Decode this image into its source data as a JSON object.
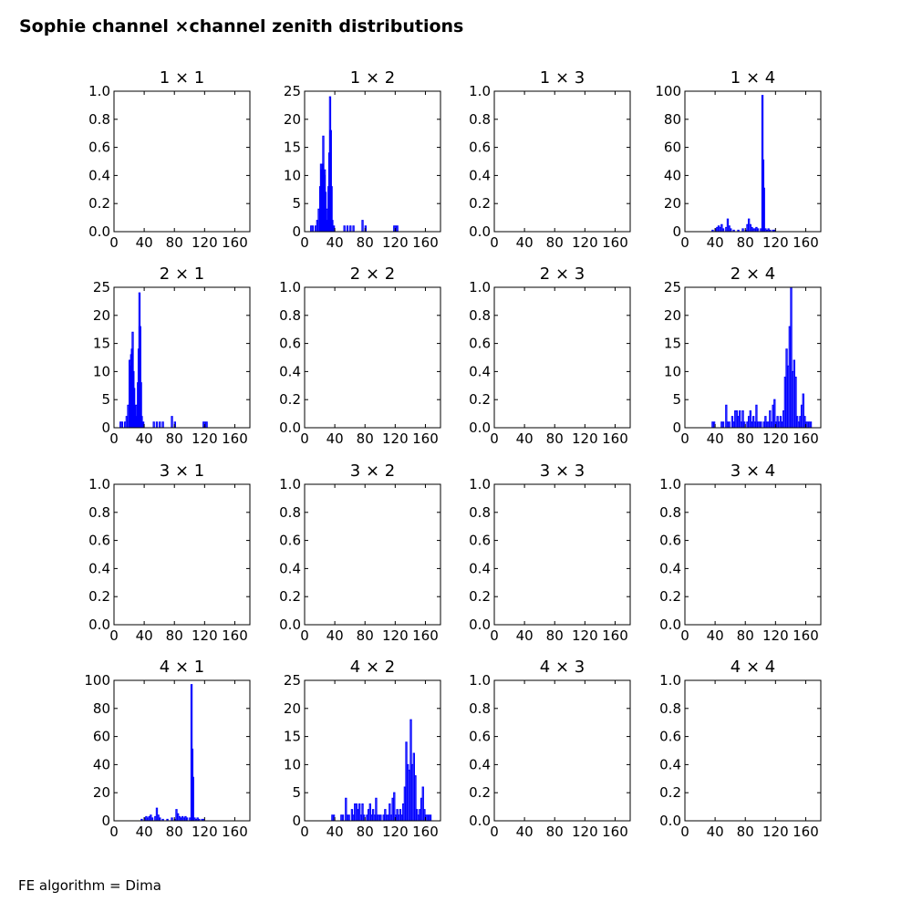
{
  "figure": {
    "title": "Sophie channel ×channel zenith distributions",
    "footer": "FE algorithm = Dima"
  },
  "chart_data": [
    {
      "type": "line",
      "title": "1  × 1",
      "xlim": [
        0,
        180
      ],
      "ylim": [
        0,
        1.0
      ],
      "xticks": [
        "0",
        "40",
        "80",
        "120",
        "160"
      ],
      "yticks": [
        "0.0",
        "0.2",
        "0.4",
        "0.6",
        "0.8",
        "1.0"
      ],
      "grid": false,
      "bins": []
    },
    {
      "type": "line",
      "title": "1  × 2",
      "xlim": [
        0,
        180
      ],
      "ylim": [
        0,
        25
      ],
      "xticks": [
        "0",
        "40",
        "80",
        "120",
        "160"
      ],
      "yticks": [
        "0",
        "5",
        "10",
        "15",
        "20",
        "25"
      ],
      "grid": false,
      "bins": [
        [
          8,
          1
        ],
        [
          10,
          1
        ],
        [
          14,
          1
        ],
        [
          16,
          2
        ],
        [
          18,
          4
        ],
        [
          20,
          8
        ],
        [
          21,
          12
        ],
        [
          22,
          11
        ],
        [
          23,
          12
        ],
        [
          24,
          17
        ],
        [
          25,
          10
        ],
        [
          26,
          11
        ],
        [
          27,
          7
        ],
        [
          28,
          1
        ],
        [
          29,
          4
        ],
        [
          30,
          2
        ],
        [
          31,
          8
        ],
        [
          32,
          14
        ],
        [
          33,
          24
        ],
        [
          34,
          18
        ],
        [
          35,
          8
        ],
        [
          36,
          2
        ],
        [
          37,
          1
        ],
        [
          38,
          1
        ],
        [
          52,
          1
        ],
        [
          56,
          1
        ],
        [
          60,
          1
        ],
        [
          64,
          1
        ],
        [
          76,
          2
        ],
        [
          80,
          1
        ],
        [
          118,
          1
        ],
        [
          120,
          1
        ],
        [
          122,
          1
        ]
      ]
    },
    {
      "type": "line",
      "title": "1  × 3",
      "xlim": [
        0,
        180
      ],
      "ylim": [
        0,
        1.0
      ],
      "xticks": [
        "0",
        "40",
        "80",
        "120",
        "160"
      ],
      "yticks": [
        "0.0",
        "0.2",
        "0.4",
        "0.6",
        "0.8",
        "1.0"
      ],
      "grid": false,
      "bins": []
    },
    {
      "type": "line",
      "title": "1  × 4",
      "xlim": [
        0,
        180
      ],
      "ylim": [
        0,
        100
      ],
      "xticks": [
        "0",
        "40",
        "80",
        "120",
        "160"
      ],
      "yticks": [
        "0",
        "20",
        "40",
        "60",
        "80",
        "100"
      ],
      "grid": false,
      "bins": [
        [
          36,
          1
        ],
        [
          40,
          2
        ],
        [
          42,
          3
        ],
        [
          44,
          4
        ],
        [
          46,
          3
        ],
        [
          48,
          5
        ],
        [
          50,
          2
        ],
        [
          54,
          3
        ],
        [
          56,
          9
        ],
        [
          58,
          4
        ],
        [
          60,
          2
        ],
        [
          64,
          1
        ],
        [
          70,
          1
        ],
        [
          76,
          2
        ],
        [
          80,
          1
        ],
        [
          82,
          5
        ],
        [
          84,
          9
        ],
        [
          86,
          5
        ],
        [
          88,
          3
        ],
        [
          90,
          2
        ],
        [
          92,
          2
        ],
        [
          94,
          3
        ],
        [
          96,
          2
        ],
        [
          100,
          2
        ],
        [
          102,
          97
        ],
        [
          103,
          51
        ],
        [
          104,
          31
        ],
        [
          106,
          2
        ],
        [
          108,
          1
        ],
        [
          110,
          2
        ],
        [
          112,
          1
        ],
        [
          116,
          1
        ],
        [
          118,
          1
        ]
      ]
    },
    {
      "type": "line",
      "title": "2  × 1",
      "xlim": [
        0,
        180
      ],
      "ylim": [
        0,
        25
      ],
      "xticks": [
        "0",
        "40",
        "80",
        "120",
        "160"
      ],
      "yticks": [
        "0",
        "5",
        "10",
        "15",
        "20",
        "25"
      ],
      "grid": false,
      "bins": [
        [
          8,
          1
        ],
        [
          10,
          1
        ],
        [
          14,
          1
        ],
        [
          16,
          2
        ],
        [
          18,
          4
        ],
        [
          20,
          12
        ],
        [
          21,
          11
        ],
        [
          22,
          13
        ],
        [
          23,
          14
        ],
        [
          24,
          17
        ],
        [
          25,
          10
        ],
        [
          26,
          7
        ],
        [
          27,
          4
        ],
        [
          28,
          1
        ],
        [
          29,
          4
        ],
        [
          30,
          2
        ],
        [
          31,
          8
        ],
        [
          32,
          14
        ],
        [
          33,
          24
        ],
        [
          34,
          18
        ],
        [
          35,
          8
        ],
        [
          36,
          2
        ],
        [
          37,
          1
        ],
        [
          38,
          1
        ],
        [
          52,
          1
        ],
        [
          56,
          1
        ],
        [
          60,
          1
        ],
        [
          64,
          1
        ],
        [
          76,
          2
        ],
        [
          80,
          1
        ],
        [
          118,
          1
        ],
        [
          120,
          1
        ],
        [
          122,
          1
        ]
      ]
    },
    {
      "type": "line",
      "title": "2  × 2",
      "xlim": [
        0,
        180
      ],
      "ylim": [
        0,
        1.0
      ],
      "xticks": [
        "0",
        "40",
        "80",
        "120",
        "160"
      ],
      "yticks": [
        "0.0",
        "0.2",
        "0.4",
        "0.6",
        "0.8",
        "1.0"
      ],
      "grid": false,
      "bins": []
    },
    {
      "type": "line",
      "title": "2  × 3",
      "xlim": [
        0,
        180
      ],
      "ylim": [
        0,
        1.0
      ],
      "xticks": [
        "0",
        "40",
        "80",
        "120",
        "160"
      ],
      "yticks": [
        "0.0",
        "0.2",
        "0.4",
        "0.6",
        "0.8",
        "1.0"
      ],
      "grid": false,
      "bins": []
    },
    {
      "type": "line",
      "title": "2  × 4",
      "xlim": [
        0,
        180
      ],
      "ylim": [
        0,
        25
      ],
      "xticks": [
        "0",
        "40",
        "80",
        "120",
        "160"
      ],
      "yticks": [
        "0",
        "5",
        "10",
        "15",
        "20",
        "25"
      ],
      "grid": false,
      "bins": [
        [
          36,
          1
        ],
        [
          38,
          1
        ],
        [
          48,
          1
        ],
        [
          50,
          1
        ],
        [
          54,
          4
        ],
        [
          56,
          1
        ],
        [
          58,
          1
        ],
        [
          62,
          2
        ],
        [
          64,
          1
        ],
        [
          66,
          3
        ],
        [
          68,
          3
        ],
        [
          70,
          2
        ],
        [
          72,
          3
        ],
        [
          74,
          1
        ],
        [
          76,
          3
        ],
        [
          78,
          1
        ],
        [
          82,
          1
        ],
        [
          84,
          2
        ],
        [
          86,
          3
        ],
        [
          88,
          1
        ],
        [
          90,
          2
        ],
        [
          92,
          1
        ],
        [
          94,
          4
        ],
        [
          96,
          1
        ],
        [
          98,
          1
        ],
        [
          100,
          1
        ],
        [
          104,
          1
        ],
        [
          106,
          2
        ],
        [
          108,
          1
        ],
        [
          110,
          1
        ],
        [
          112,
          3
        ],
        [
          114,
          1
        ],
        [
          116,
          4
        ],
        [
          118,
          5
        ],
        [
          120,
          1
        ],
        [
          122,
          2
        ],
        [
          124,
          1
        ],
        [
          126,
          2
        ],
        [
          128,
          1
        ],
        [
          130,
          3
        ],
        [
          132,
          9
        ],
        [
          134,
          14
        ],
        [
          136,
          11
        ],
        [
          138,
          18
        ],
        [
          140,
          25
        ],
        [
          142,
          10
        ],
        [
          144,
          12
        ],
        [
          146,
          9
        ],
        [
          148,
          2
        ],
        [
          150,
          1
        ],
        [
          152,
          2
        ],
        [
          154,
          4
        ],
        [
          156,
          6
        ],
        [
          158,
          2
        ],
        [
          160,
          1
        ],
        [
          162,
          1
        ],
        [
          164,
          1
        ],
        [
          166,
          1
        ]
      ]
    },
    {
      "type": "line",
      "title": "3  × 1",
      "xlim": [
        0,
        180
      ],
      "ylim": [
        0,
        1.0
      ],
      "xticks": [
        "0",
        "40",
        "80",
        "120",
        "160"
      ],
      "yticks": [
        "0.0",
        "0.2",
        "0.4",
        "0.6",
        "0.8",
        "1.0"
      ],
      "grid": false,
      "bins": []
    },
    {
      "type": "line",
      "title": "3  × 2",
      "xlim": [
        0,
        180
      ],
      "ylim": [
        0,
        1.0
      ],
      "xticks": [
        "0",
        "40",
        "80",
        "120",
        "160"
      ],
      "yticks": [
        "0.0",
        "0.2",
        "0.4",
        "0.6",
        "0.8",
        "1.0"
      ],
      "grid": false,
      "bins": []
    },
    {
      "type": "line",
      "title": "3  × 3",
      "xlim": [
        0,
        180
      ],
      "ylim": [
        0,
        1.0
      ],
      "xticks": [
        "0",
        "40",
        "80",
        "120",
        "160"
      ],
      "yticks": [
        "0.0",
        "0.2",
        "0.4",
        "0.6",
        "0.8",
        "1.0"
      ],
      "grid": false,
      "bins": []
    },
    {
      "type": "line",
      "title": "3  × 4",
      "xlim": [
        0,
        180
      ],
      "ylim": [
        0,
        1.0
      ],
      "xticks": [
        "0",
        "40",
        "80",
        "120",
        "160"
      ],
      "yticks": [
        "0.0",
        "0.2",
        "0.4",
        "0.6",
        "0.8",
        "1.0"
      ],
      "grid": false,
      "bins": []
    },
    {
      "type": "line",
      "title": "4  × 1",
      "xlim": [
        0,
        180
      ],
      "ylim": [
        0,
        100
      ],
      "xticks": [
        "0",
        "40",
        "80",
        "120",
        "160"
      ],
      "yticks": [
        "0",
        "20",
        "40",
        "60",
        "80",
        "100"
      ],
      "grid": false,
      "bins": [
        [
          36,
          1
        ],
        [
          40,
          2
        ],
        [
          42,
          3
        ],
        [
          44,
          2
        ],
        [
          46,
          3
        ],
        [
          48,
          4
        ],
        [
          50,
          2
        ],
        [
          54,
          3
        ],
        [
          56,
          9
        ],
        [
          58,
          4
        ],
        [
          60,
          2
        ],
        [
          64,
          1
        ],
        [
          70,
          1
        ],
        [
          76,
          2
        ],
        [
          80,
          1
        ],
        [
          82,
          8
        ],
        [
          84,
          5
        ],
        [
          86,
          3
        ],
        [
          88,
          2
        ],
        [
          90,
          3
        ],
        [
          92,
          2
        ],
        [
          94,
          3
        ],
        [
          96,
          2
        ],
        [
          100,
          2
        ],
        [
          102,
          97
        ],
        [
          103,
          51
        ],
        [
          104,
          31
        ],
        [
          106,
          2
        ],
        [
          108,
          1
        ],
        [
          110,
          2
        ],
        [
          112,
          1
        ],
        [
          116,
          1
        ],
        [
          118,
          1
        ]
      ]
    },
    {
      "type": "line",
      "title": "4  × 2",
      "xlim": [
        0,
        180
      ],
      "ylim": [
        0,
        25
      ],
      "xticks": [
        "0",
        "40",
        "80",
        "120",
        "160"
      ],
      "yticks": [
        "0",
        "5",
        "10",
        "15",
        "20",
        "25"
      ],
      "grid": false,
      "bins": [
        [
          36,
          1
        ],
        [
          38,
          1
        ],
        [
          48,
          1
        ],
        [
          50,
          1
        ],
        [
          54,
          4
        ],
        [
          56,
          1
        ],
        [
          58,
          1
        ],
        [
          62,
          2
        ],
        [
          64,
          1
        ],
        [
          66,
          3
        ],
        [
          68,
          3
        ],
        [
          70,
          2
        ],
        [
          72,
          3
        ],
        [
          74,
          1
        ],
        [
          76,
          3
        ],
        [
          78,
          1
        ],
        [
          82,
          1
        ],
        [
          84,
          2
        ],
        [
          86,
          3
        ],
        [
          88,
          1
        ],
        [
          90,
          2
        ],
        [
          92,
          1
        ],
        [
          94,
          4
        ],
        [
          96,
          1
        ],
        [
          98,
          1
        ],
        [
          100,
          1
        ],
        [
          104,
          1
        ],
        [
          106,
          2
        ],
        [
          108,
          1
        ],
        [
          110,
          1
        ],
        [
          112,
          3
        ],
        [
          114,
          1
        ],
        [
          116,
          4
        ],
        [
          118,
          5
        ],
        [
          120,
          1
        ],
        [
          122,
          2
        ],
        [
          124,
          1
        ],
        [
          126,
          2
        ],
        [
          128,
          1
        ],
        [
          130,
          3
        ],
        [
          132,
          6
        ],
        [
          134,
          14
        ],
        [
          136,
          10
        ],
        [
          138,
          9
        ],
        [
          140,
          18
        ],
        [
          142,
          10
        ],
        [
          144,
          12
        ],
        [
          146,
          8
        ],
        [
          148,
          2
        ],
        [
          150,
          1
        ],
        [
          152,
          2
        ],
        [
          154,
          4
        ],
        [
          156,
          6
        ],
        [
          158,
          2
        ],
        [
          160,
          1
        ],
        [
          162,
          1
        ],
        [
          164,
          1
        ],
        [
          166,
          1
        ]
      ]
    },
    {
      "type": "line",
      "title": "4  × 3",
      "xlim": [
        0,
        180
      ],
      "ylim": [
        0,
        1.0
      ],
      "xticks": [
        "0",
        "40",
        "80",
        "120",
        "160"
      ],
      "yticks": [
        "0.0",
        "0.2",
        "0.4",
        "0.6",
        "0.8",
        "1.0"
      ],
      "grid": false,
      "bins": []
    },
    {
      "type": "line",
      "title": "4  × 4",
      "xlim": [
        0,
        180
      ],
      "ylim": [
        0,
        1.0
      ],
      "xticks": [
        "0",
        "40",
        "80",
        "120",
        "160"
      ],
      "yticks": [
        "0.0",
        "0.2",
        "0.4",
        "0.6",
        "0.8",
        "1.0"
      ],
      "grid": false,
      "bins": []
    }
  ],
  "colors": {
    "series": "#0000ff",
    "axes": "#000000"
  }
}
